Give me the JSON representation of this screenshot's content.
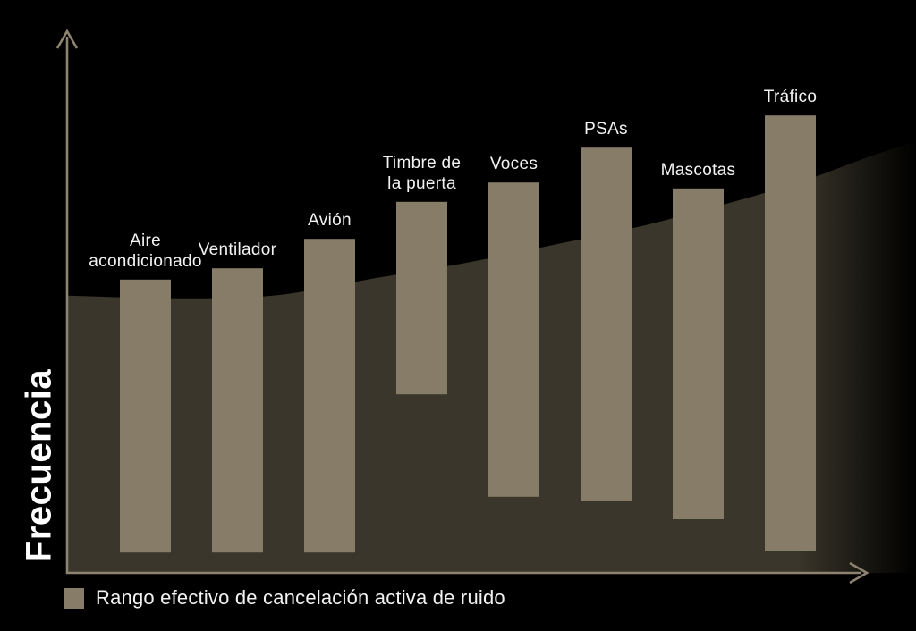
{
  "chart_data": {
    "type": "bar",
    "bar_style": "floating_range",
    "title": "",
    "ylabel": "Frecuencia",
    "xlabel": "",
    "categories": [
      "Aire acondicionado",
      "Ventilador",
      "Avión",
      "Timbre de la puerta",
      "Voces",
      "PSAs",
      "Mascotas",
      "Tráfico"
    ],
    "category_label_lines": [
      [
        "Aire",
        "acondicionado"
      ],
      [
        "Ventilador"
      ],
      [
        "Avión"
      ],
      [
        "Timbre de",
        "la puerta"
      ],
      [
        "Voces"
      ],
      [
        "PSAs"
      ],
      [
        "Mascotas"
      ],
      [
        "Tráfico"
      ]
    ],
    "series": [
      {
        "name": "Rango efectivo de cancelación activa de ruido",
        "ranges_pct_of_axis": [
          [
            3.8,
            54.7
          ],
          [
            3.8,
            56.8
          ],
          [
            3.8,
            62.3
          ],
          [
            33.3,
            69.2
          ],
          [
            14.2,
            72.8
          ],
          [
            13.5,
            79.3
          ],
          [
            10.0,
            71.7
          ],
          [
            4.0,
            85.3
          ]
        ]
      }
    ],
    "background_curve": {
      "name": "perfil-de-ruido-ambiental",
      "area_filled_below": true,
      "points": [
        {
          "x_pct": 0.0,
          "y_pct": 51.7
        },
        {
          "x_pct": 13.2,
          "y_pct": 51.2
        },
        {
          "x_pct": 24.8,
          "y_pct": 51.8
        },
        {
          "x_pct": 36.4,
          "y_pct": 55.0
        },
        {
          "x_pct": 46.9,
          "y_pct": 57.8
        },
        {
          "x_pct": 57.4,
          "y_pct": 61.2
        },
        {
          "x_pct": 68.0,
          "y_pct": 64.8
        },
        {
          "x_pct": 78.5,
          "y_pct": 69.2
        },
        {
          "x_pct": 86.9,
          "y_pct": 73.2
        },
        {
          "x_pct": 94.3,
          "y_pct": 77.5
        },
        {
          "x_pct": 100.0,
          "y_pct": 80.5
        }
      ]
    },
    "y_axis": {
      "label": "Frecuencia",
      "numeric_ticks_shown": false,
      "range_pct": [
        0,
        100
      ],
      "arrow": true
    },
    "x_axis": {
      "label": "",
      "numeric_ticks_shown": false,
      "arrow": true
    },
    "legend": {
      "position": "bottom-left",
      "items": [
        {
          "label": "Rango efectivo de cancelación activa de ruido",
          "swatch_color": "#867c67"
        }
      ]
    },
    "colors": {
      "background": "#000000",
      "bar_fill": "#867c67",
      "curve_area_fill": "#3a362b",
      "curve_area_fade_to": "#000000",
      "axis": "#8d8370",
      "label_text": "#f3f3f3",
      "legend_text": "#f2f2f2",
      "ylabel_text": "#ffffff"
    }
  }
}
